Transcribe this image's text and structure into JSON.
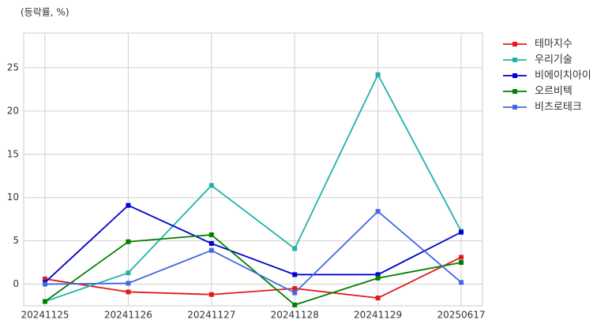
{
  "chart_data": {
    "type": "line",
    "title": "(등락률, %)",
    "categories": [
      "20241125",
      "20241126",
      "20241127",
      "20241128",
      "20241129",
      "20250617"
    ],
    "series": [
      {
        "name": "테마지수",
        "color": "#e31a1c",
        "values": [
          0.6,
          -0.9,
          -1.2,
          -0.5,
          -1.6,
          3.1
        ]
      },
      {
        "name": "우리기술",
        "color": "#20b2aa",
        "values": [
          -2.0,
          1.3,
          11.4,
          4.1,
          24.2,
          6.1
        ]
      },
      {
        "name": "비에이치아이",
        "color": "#0000cd",
        "values": [
          0.2,
          9.1,
          4.7,
          1.1,
          1.1,
          6.0
        ]
      },
      {
        "name": "오르비텍",
        "color": "#008000",
        "values": [
          -2.0,
          4.9,
          5.7,
          -2.4,
          0.7,
          2.5
        ]
      },
      {
        "name": "비츠로테크",
        "color": "#4169e1",
        "values": [
          0.0,
          0.1,
          3.9,
          -1.0,
          8.4,
          0.2
        ]
      }
    ],
    "ylim": [
      -2.5,
      29
    ],
    "yticks": [
      0,
      5,
      10,
      15,
      20,
      25
    ],
    "grid": true
  }
}
